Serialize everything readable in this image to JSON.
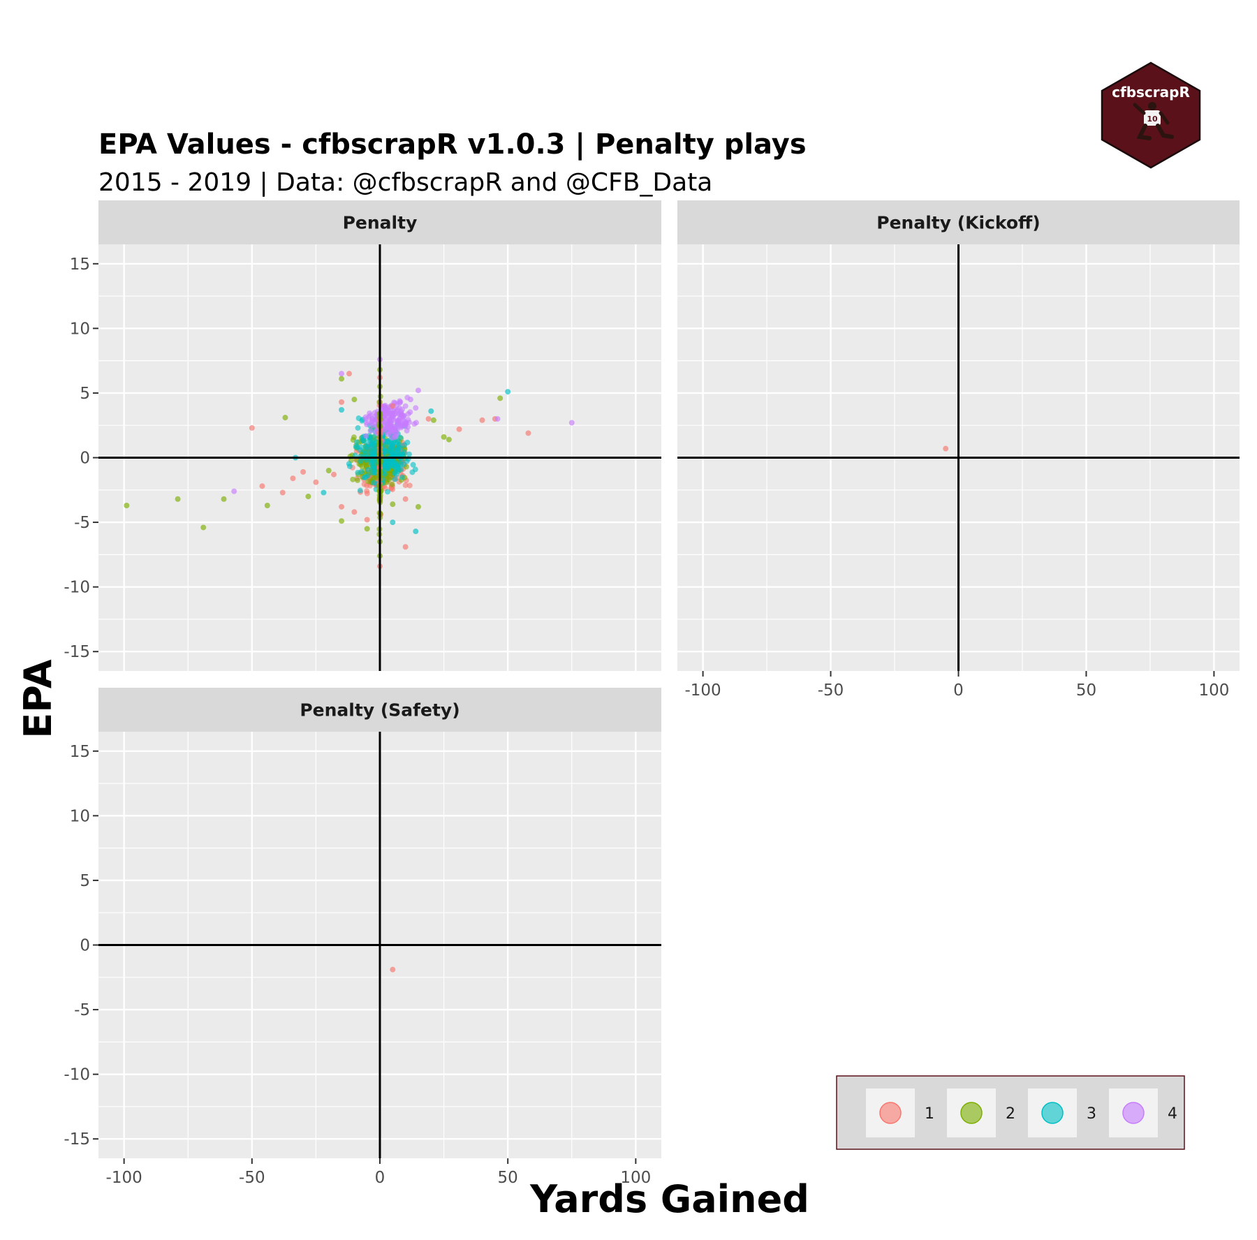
{
  "chart_data": {
    "type": "scatter",
    "title": "EPA Values - cfbscrapR v1.0.3 | Penalty plays",
    "subtitle": "2015 - 2019 | Data: @cfbscrapR and @CFB_Data",
    "xlabel": "Yards Gained",
    "ylabel": "EPA",
    "xlim": [
      -110,
      110
    ],
    "ylim": [
      -16.5,
      16.5
    ],
    "x_ticks": [
      -100,
      -50,
      0,
      50,
      100
    ],
    "x_tick_labels": [
      "-100",
      "-50",
      "0",
      "50",
      "100"
    ],
    "y_ticks": [
      -15,
      -10,
      -5,
      0,
      5,
      10,
      15
    ],
    "y_tick_labels": [
      "-15",
      "-10",
      "-5",
      "0",
      "5",
      "10",
      "15"
    ],
    "grid": true,
    "reference_lines": {
      "x": 0,
      "y": 0
    },
    "legend": {
      "position": "bottom-right",
      "entries": [
        {
          "label": "1",
          "color": "#F8766D"
        },
        {
          "label": "2",
          "color": "#7CAE00"
        },
        {
          "label": "3",
          "color": "#00BFC4"
        },
        {
          "label": "4",
          "color": "#C77CFF"
        }
      ]
    },
    "panels": [
      {
        "name": "Penalty",
        "points": [
          {
            "x": -50,
            "y": 2.3,
            "s": "1"
          },
          {
            "x": -37,
            "y": 3.1,
            "s": "2"
          },
          {
            "x": -99,
            "y": -3.7,
            "s": "2"
          },
          {
            "x": -79,
            "y": -3.2,
            "s": "2"
          },
          {
            "x": -69,
            "y": -5.4,
            "s": "2"
          },
          {
            "x": -61,
            "y": -3.2,
            "s": "2"
          },
          {
            "x": -57,
            "y": -2.6,
            "s": "4"
          },
          {
            "x": -46,
            "y": -2.2,
            "s": "1"
          },
          {
            "x": -44,
            "y": -3.7,
            "s": "2"
          },
          {
            "x": -38,
            "y": -2.7,
            "s": "1"
          },
          {
            "x": -34,
            "y": -1.6,
            "s": "1"
          },
          {
            "x": -33,
            "y": 0.0,
            "s": "3"
          },
          {
            "x": -30,
            "y": -1.1,
            "s": "1"
          },
          {
            "x": -28,
            "y": -3.0,
            "s": "2"
          },
          {
            "x": -25,
            "y": -1.9,
            "s": "1"
          },
          {
            "x": -22,
            "y": -2.7,
            "s": "3"
          },
          {
            "x": -20,
            "y": -1.0,
            "s": "2"
          },
          {
            "x": -18,
            "y": -1.3,
            "s": "1"
          },
          {
            "x": -15,
            "y": 6.5,
            "s": "4"
          },
          {
            "x": -12,
            "y": 6.5,
            "s": "1"
          },
          {
            "x": -15,
            "y": 6.1,
            "s": "2"
          },
          {
            "x": -15,
            "y": 4.3,
            "s": "1"
          },
          {
            "x": -10,
            "y": 4.5,
            "s": "2"
          },
          {
            "x": -15,
            "y": 3.7,
            "s": "3"
          },
          {
            "x": -15,
            "y": -4.9,
            "s": "2"
          },
          {
            "x": -15,
            "y": -3.8,
            "s": "1"
          },
          {
            "x": -10,
            "y": -4.2,
            "s": "1"
          },
          {
            "x": -5,
            "y": -4.8,
            "s": "1"
          },
          {
            "x": -5,
            "y": -5.5,
            "s": "2"
          },
          {
            "x": 0,
            "y": 7.6,
            "s": "4"
          },
          {
            "x": 0,
            "y": 6.8,
            "s": "2"
          },
          {
            "x": 0,
            "y": 6.2,
            "s": "1"
          },
          {
            "x": 0,
            "y": 5.5,
            "s": "2"
          },
          {
            "x": 0,
            "y": -6.5,
            "s": "2"
          },
          {
            "x": 0,
            "y": -7.6,
            "s": "2"
          },
          {
            "x": 0,
            "y": -8.4,
            "s": "1"
          },
          {
            "x": 5,
            "y": -5.0,
            "s": "3"
          },
          {
            "x": 10,
            "y": -6.9,
            "s": "1"
          },
          {
            "x": 15,
            "y": -3.8,
            "s": "2"
          },
          {
            "x": 14,
            "y": -5.7,
            "s": "3"
          },
          {
            "x": 5,
            "y": -3.6,
            "s": "2"
          },
          {
            "x": 10,
            "y": -3.2,
            "s": "1"
          },
          {
            "x": 5,
            "y": 4.0,
            "s": "1"
          },
          {
            "x": 8,
            "y": 4.3,
            "s": "4"
          },
          {
            "x": 12,
            "y": 4.5,
            "s": "4"
          },
          {
            "x": 15,
            "y": 5.2,
            "s": "4"
          },
          {
            "x": 20,
            "y": 3.6,
            "s": "3"
          },
          {
            "x": 19,
            "y": 3.0,
            "s": "1"
          },
          {
            "x": 21,
            "y": 2.9,
            "s": "2"
          },
          {
            "x": 25,
            "y": 1.6,
            "s": "2"
          },
          {
            "x": 27,
            "y": 1.4,
            "s": "2"
          },
          {
            "x": 31,
            "y": 2.2,
            "s": "1"
          },
          {
            "x": 40,
            "y": 2.9,
            "s": "1"
          },
          {
            "x": 45,
            "y": 3.0,
            "s": "1"
          },
          {
            "x": 47,
            "y": 4.6,
            "s": "2"
          },
          {
            "x": 50,
            "y": 5.1,
            "s": "3"
          },
          {
            "x": 46,
            "y": 3.0,
            "s": "4"
          },
          {
            "x": 58,
            "y": 1.9,
            "s": "1"
          },
          {
            "x": 75,
            "y": 2.7,
            "s": "4"
          }
        ],
        "dense_clusters": [
          {
            "s": "1",
            "x": [
              -15,
              15
            ],
            "y": [
              -3.5,
              2.5
            ],
            "n": 220
          },
          {
            "s": "2",
            "x": [
              -15,
              15
            ],
            "y": [
              -3.0,
              2.8
            ],
            "n": 220
          },
          {
            "s": "3",
            "x": [
              -15,
              17
            ],
            "y": [
              -3.0,
              3.8
            ],
            "n": 240
          },
          {
            "s": "4",
            "x": [
              -8,
              16
            ],
            "y": [
              1.0,
              5.0
            ],
            "n": 170
          },
          {
            "s": "1",
            "x": [
              -0.4,
              0.4
            ],
            "y": [
              -7.0,
              6.5
            ],
            "n": 60
          },
          {
            "s": "2",
            "x": [
              -0.4,
              0.4
            ],
            "y": [
              -7.5,
              6.0
            ],
            "n": 50
          }
        ]
      },
      {
        "name": "Penalty (Kickoff)",
        "points": [
          {
            "x": -5,
            "y": 0.7,
            "s": "1"
          }
        ]
      },
      {
        "name": "Penalty (Safety)",
        "points": [
          {
            "x": 5,
            "y": -1.9,
            "s": "1"
          }
        ]
      }
    ]
  },
  "logo": {
    "text": "cfbscrapR",
    "jersey_number": "10",
    "color": "#5A1119"
  }
}
